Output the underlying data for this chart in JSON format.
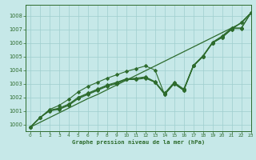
{
  "xlabel": "Graphe pression niveau de la mer (hPa)",
  "xlim": [
    -0.5,
    23
  ],
  "ylim": [
    999.5,
    1008.8
  ],
  "yticks": [
    1000,
    1001,
    1002,
    1003,
    1004,
    1005,
    1006,
    1007,
    1008
  ],
  "xticks": [
    0,
    1,
    2,
    3,
    4,
    5,
    6,
    7,
    8,
    9,
    10,
    11,
    12,
    13,
    14,
    15,
    16,
    17,
    18,
    19,
    20,
    21,
    22,
    23
  ],
  "background_color": "#c6e8e8",
  "grid_color": "#9ecece",
  "line_color": "#2d6b2d",
  "line_top": [
    999.8,
    1000.15,
    1000.5,
    1000.85,
    1001.2,
    1001.55,
    1001.9,
    1002.2,
    1002.55,
    1002.9,
    1003.25,
    1003.6,
    1003.95,
    1004.3,
    1004.65,
    1005.0,
    1005.35,
    1005.7,
    1006.05,
    1006.4,
    1006.75,
    1007.1,
    1007.45,
    1008.2
  ],
  "line_a": [
    999.8,
    1000.5,
    1001.0,
    1001.1,
    1001.4,
    1001.9,
    1002.2,
    1002.5,
    1002.8,
    1003.0,
    1003.3,
    1003.3,
    1003.4,
    1003.1,
    1002.2,
    1003.0,
    1002.5,
    1004.3,
    1005.0,
    1006.0,
    1006.4,
    1007.0,
    1007.5,
    1008.2
  ],
  "line_b": [
    999.8,
    1000.5,
    1001.0,
    1001.15,
    1001.45,
    1001.95,
    1002.25,
    1002.55,
    1002.85,
    1003.05,
    1003.35,
    1003.35,
    1003.45,
    1003.1,
    1002.25,
    1003.05,
    1002.55,
    1004.3,
    1005.0,
    1006.0,
    1006.45,
    1007.05,
    1007.05,
    1008.2
  ],
  "line_c": [
    999.8,
    1000.5,
    1001.05,
    1001.2,
    1001.5,
    1002.0,
    1002.3,
    1002.6,
    1002.9,
    1003.1,
    1003.35,
    1003.4,
    1003.5,
    1003.15,
    1002.3,
    1003.1,
    1002.6,
    1004.35,
    1005.05,
    1006.05,
    1006.5,
    1007.1,
    1007.1,
    1008.2
  ],
  "line_spread": [
    999.8,
    1000.5,
    1001.1,
    1001.4,
    1001.85,
    1002.4,
    1002.8,
    1003.1,
    1003.4,
    1003.65,
    1003.9,
    1004.1,
    1004.3,
    1004.0,
    1002.2,
    1003.0,
    1002.5,
    1004.3,
    1005.0,
    1006.0,
    1006.4,
    1007.0,
    1007.5,
    1008.2
  ]
}
